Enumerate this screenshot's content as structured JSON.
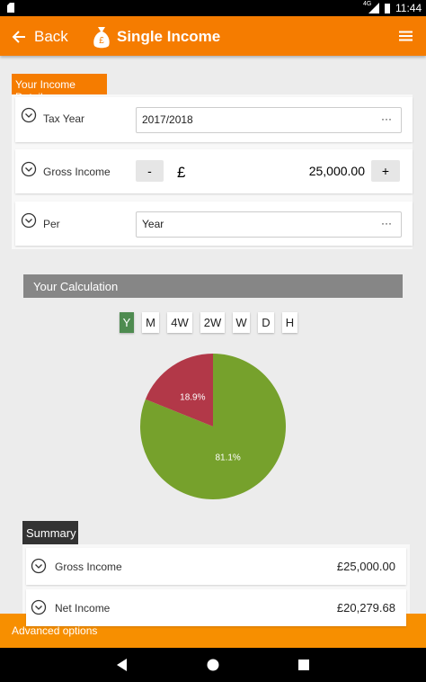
{
  "status_bar": {
    "network": "4G",
    "time": "11:44"
  },
  "app_bar": {
    "back": "Back",
    "title": "Single Income"
  },
  "income_details": {
    "title": "Your Income Details",
    "tax_year": {
      "label": "Tax Year",
      "value": "2017/2018",
      "more": "···"
    },
    "gross_income": {
      "label": "Gross Income",
      "minus": "-",
      "currency": "£",
      "value": "25,000.00",
      "plus": "+"
    },
    "per": {
      "label": "Per",
      "value": "Year",
      "more": "···"
    }
  },
  "calculation": {
    "title": "Your Calculation",
    "periods": [
      "Y",
      "M",
      "4W",
      "2W",
      "W",
      "D",
      "H"
    ]
  },
  "chart_data": {
    "type": "pie",
    "values": [
      81.1,
      18.9
    ],
    "value_labels": [
      "81.1%",
      "18.9%"
    ],
    "colors": [
      "#76a12c",
      "#b23848"
    ]
  },
  "summary": {
    "title": "Summary",
    "rows": [
      {
        "label": "Gross Income",
        "value": "£25,000.00"
      },
      {
        "label": "Net Income",
        "value": "£20,279.68"
      }
    ]
  },
  "bottom_bar": {
    "label": "Advanced options"
  }
}
